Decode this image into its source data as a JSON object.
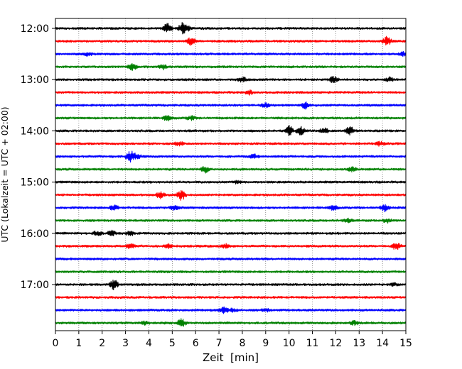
{
  "chart_data": {
    "type": "line",
    "title": "",
    "xlabel": "Zeit  [min]",
    "ylabel": "UTC (Lokalzeit = UTC + 02:00)",
    "xlim": [
      0,
      15
    ],
    "x_ticks": [
      0,
      1,
      2,
      3,
      4,
      5,
      6,
      7,
      8,
      9,
      10,
      11,
      12,
      13,
      14,
      15
    ],
    "y_tick_labels": [
      "12:00",
      "13:00",
      "14:00",
      "15:00",
      "16:00",
      "17:00"
    ],
    "grid": "vertical dotted lines at each minute",
    "legend": "none",
    "trace_interval_min": 15,
    "trace_colors": [
      "#000000",
      "#ff0000",
      "#0000ff",
      "#008000"
    ],
    "traces": [
      {
        "start": "12:00",
        "color": "#000000",
        "bursts": [
          {
            "t": 4.8,
            "amp": 0.8
          },
          {
            "t": 5.4,
            "amp": 0.7
          },
          {
            "t": 5.6,
            "amp": 0.5
          }
        ]
      },
      {
        "start": "12:15",
        "color": "#ff0000",
        "bursts": [
          {
            "t": 5.8,
            "amp": 0.6
          },
          {
            "t": 14.2,
            "amp": 0.7
          }
        ]
      },
      {
        "start": "12:30",
        "color": "#0000ff",
        "bursts": [
          {
            "t": 1.4,
            "amp": 0.3
          },
          {
            "t": 14.9,
            "amp": 0.3
          }
        ]
      },
      {
        "start": "12:45",
        "color": "#008000",
        "bursts": [
          {
            "t": 3.3,
            "amp": 0.5
          },
          {
            "t": 4.6,
            "amp": 0.4
          }
        ]
      },
      {
        "start": "13:00",
        "color": "#000000",
        "bursts": [
          {
            "t": 8.0,
            "amp": 0.4
          },
          {
            "t": 11.9,
            "amp": 0.5
          },
          {
            "t": 14.3,
            "amp": 0.3
          }
        ]
      },
      {
        "start": "13:15",
        "color": "#ff0000",
        "bursts": [
          {
            "t": 8.3,
            "amp": 0.3
          }
        ]
      },
      {
        "start": "13:30",
        "color": "#0000ff",
        "bursts": [
          {
            "t": 9.0,
            "amp": 0.3
          },
          {
            "t": 10.7,
            "amp": 0.5
          }
        ]
      },
      {
        "start": "13:45",
        "color": "#008000",
        "bursts": [
          {
            "t": 4.8,
            "amp": 0.4
          },
          {
            "t": 5.8,
            "amp": 0.3
          }
        ]
      },
      {
        "start": "14:00",
        "color": "#000000",
        "bursts": [
          {
            "t": 10.0,
            "amp": 0.8
          },
          {
            "t": 10.5,
            "amp": 0.6
          },
          {
            "t": 12.6,
            "amp": 0.7
          },
          {
            "t": 11.5,
            "amp": 0.4
          }
        ]
      },
      {
        "start": "14:15",
        "color": "#ff0000",
        "bursts": [
          {
            "t": 5.3,
            "amp": 0.3
          },
          {
            "t": 13.9,
            "amp": 0.3
          }
        ]
      },
      {
        "start": "14:30",
        "color": "#0000ff",
        "bursts": [
          {
            "t": 3.2,
            "amp": 0.9
          },
          {
            "t": 3.5,
            "amp": 0.4
          },
          {
            "t": 8.5,
            "amp": 0.3
          }
        ]
      },
      {
        "start": "14:45",
        "color": "#008000",
        "bursts": [
          {
            "t": 6.4,
            "amp": 0.5
          },
          {
            "t": 12.7,
            "amp": 0.3
          }
        ]
      },
      {
        "start": "15:00",
        "color": "#000000",
        "bursts": [
          {
            "t": 7.8,
            "amp": 0.2
          }
        ]
      },
      {
        "start": "15:15",
        "color": "#ff0000",
        "bursts": [
          {
            "t": 4.5,
            "amp": 0.5
          },
          {
            "t": 5.4,
            "amp": 0.8
          }
        ]
      },
      {
        "start": "15:30",
        "color": "#0000ff",
        "bursts": [
          {
            "t": 2.5,
            "amp": 0.4
          },
          {
            "t": 5.1,
            "amp": 0.4
          },
          {
            "t": 11.9,
            "amp": 0.4
          },
          {
            "t": 14.1,
            "amp": 0.5
          }
        ]
      },
      {
        "start": "15:45",
        "color": "#008000",
        "bursts": [
          {
            "t": 12.5,
            "amp": 0.3
          },
          {
            "t": 14.2,
            "amp": 0.3
          }
        ]
      },
      {
        "start": "16:00",
        "color": "#000000",
        "bursts": [
          {
            "t": 1.8,
            "amp": 0.4
          },
          {
            "t": 2.4,
            "amp": 0.4
          },
          {
            "t": 3.2,
            "amp": 0.3
          }
        ]
      },
      {
        "start": "16:15",
        "color": "#ff0000",
        "bursts": [
          {
            "t": 3.2,
            "amp": 0.4
          },
          {
            "t": 4.8,
            "amp": 0.3
          },
          {
            "t": 7.3,
            "amp": 0.3
          },
          {
            "t": 14.6,
            "amp": 0.6
          }
        ]
      },
      {
        "start": "16:30",
        "color": "#0000ff",
        "bursts": []
      },
      {
        "start": "16:45",
        "color": "#008000",
        "bursts": []
      },
      {
        "start": "17:00",
        "color": "#000000",
        "bursts": [
          {
            "t": 2.5,
            "amp": 0.8
          },
          {
            "t": 14.5,
            "amp": 0.2
          }
        ]
      },
      {
        "start": "17:15",
        "color": "#ff0000",
        "bursts": []
      },
      {
        "start": "17:30",
        "color": "#0000ff",
        "bursts": [
          {
            "t": 7.2,
            "amp": 0.5
          },
          {
            "t": 7.6,
            "amp": 0.3
          },
          {
            "t": 9.0,
            "amp": 0.2
          }
        ]
      },
      {
        "start": "17:45",
        "color": "#008000",
        "bursts": [
          {
            "t": 3.8,
            "amp": 0.3
          },
          {
            "t": 5.4,
            "amp": 0.6
          },
          {
            "t": 12.8,
            "amp": 0.3
          }
        ]
      }
    ]
  }
}
